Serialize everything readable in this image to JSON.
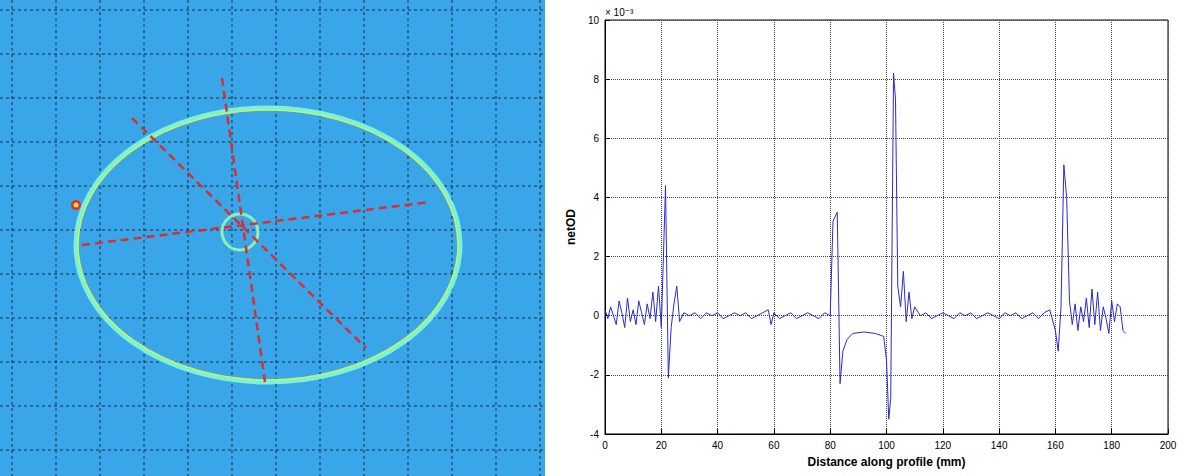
{
  "chart_data": {
    "type": "line",
    "x_label": "Distance along profile (mm)",
    "y_label": "netOD",
    "annotations": [
      "× 10⁻³"
    ],
    "x": [
      0,
      1,
      2,
      3,
      4,
      5,
      6,
      7,
      8,
      9,
      10,
      11,
      12,
      13,
      14,
      15,
      16,
      17,
      18,
      19,
      20,
      21.5,
      22.5,
      23.5,
      24.5,
      25.5,
      26.5,
      28,
      30,
      32,
      34,
      36,
      38,
      40,
      42,
      44,
      46,
      48,
      50,
      52,
      54,
      56,
      58,
      59,
      60,
      62,
      64,
      66,
      68,
      70,
      72,
      74,
      76,
      78,
      80,
      81,
      82.5,
      83.5,
      84.5,
      86,
      88,
      92,
      96,
      99,
      100,
      100.8,
      101.5,
      102.5,
      103.2,
      104,
      105,
      106,
      107,
      108,
      109,
      110,
      112,
      114,
      116,
      118,
      120,
      122,
      124,
      126,
      128,
      130,
      132,
      134,
      136,
      138,
      140,
      142,
      144,
      146,
      148,
      150,
      152,
      154,
      156,
      158,
      160,
      161,
      162,
      163,
      164,
      165,
      166,
      167,
      168,
      169,
      170,
      171,
      172,
      173,
      174,
      175,
      176,
      177,
      178,
      179,
      180,
      181,
      182,
      183,
      184,
      185
    ],
    "values": [
      0.2,
      -0.1,
      0.3,
      0.0,
      -0.3,
      0.5,
      0.1,
      -0.4,
      0.6,
      -0.2,
      0.2,
      -0.3,
      0.5,
      0.1,
      -0.3,
      0.4,
      -0.1,
      0.8,
      -0.2,
      1.0,
      -0.4,
      4.4,
      -2.1,
      -0.4,
      0.4,
      1.0,
      -0.2,
      0.1,
      0.0,
      0.1,
      -0.1,
      0.1,
      0.0,
      0.1,
      -0.1,
      0.0,
      0.1,
      0.0,
      0.1,
      -0.1,
      0.0,
      0.1,
      0.2,
      -0.3,
      0.1,
      -0.1,
      0.0,
      0.1,
      -0.1,
      0.0,
      0.1,
      0.0,
      -0.1,
      0.1,
      0.0,
      3.2,
      3.5,
      -2.3,
      -1.2,
      -0.8,
      -0.6,
      -0.55,
      -0.6,
      -0.7,
      -1.5,
      -3.5,
      -2.8,
      8.2,
      7.3,
      1.0,
      0.3,
      1.5,
      -0.2,
      0.8,
      -0.1,
      0.3,
      0.0,
      0.1,
      -0.1,
      0.0,
      0.1,
      0.0,
      -0.1,
      0.1,
      0.0,
      0.1,
      -0.1,
      0.0,
      0.1,
      0.0,
      -0.1,
      0.1,
      0.0,
      0.1,
      -0.1,
      0.0,
      0.1,
      -0.1,
      0.1,
      0.2,
      -0.5,
      -1.2,
      0.3,
      5.1,
      4.0,
      0.5,
      -0.3,
      0.4,
      -0.5,
      0.3,
      -0.2,
      0.6,
      -0.4,
      0.9,
      -0.3,
      0.8,
      -0.5,
      0.3,
      -0.1,
      -0.6,
      0.5,
      -0.2,
      0.4,
      0.3,
      -0.5,
      -0.6
    ],
    "color": "#2a2ad6",
    "xlim": [
      0,
      200
    ],
    "xticks": [
      0,
      20,
      40,
      60,
      80,
      100,
      120,
      140,
      160,
      180,
      200
    ],
    "ylim": [
      -4,
      10
    ],
    "yticks": [
      -4,
      -2,
      0,
      2,
      4,
      6,
      8,
      10
    ],
    "grid": true
  }
}
